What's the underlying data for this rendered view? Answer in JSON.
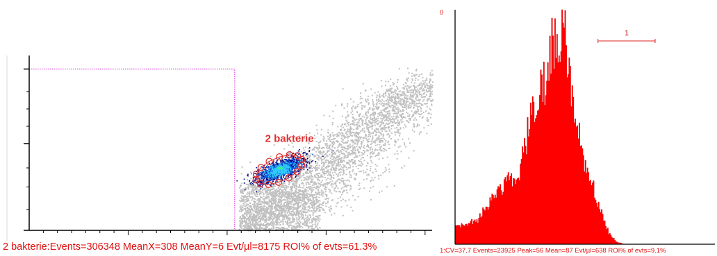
{
  "colors": {
    "gate": "#dd44dd",
    "scatter_bg": "#c0c0c0",
    "density_outer": "#000080",
    "density_mid": "#1060e0",
    "density_core": "#30c8ff",
    "roi": "#e03030",
    "histogram": "#ff0000",
    "text": "#e01010",
    "axis": "#000000"
  },
  "left": {
    "roi_label": "2 bakterie",
    "stats": "2 bakterie:Events=306348  MeanX=308  MeanY=6     Evt/µl=8175   ROI% of evts=61.3%"
  },
  "right": {
    "y_top_label": "0",
    "marker_label": "1",
    "stats": "1:CV=37.7  Events=23925  Peak=56  Mean=87    Evt/µl=638  ROI% of evts=9.1%"
  },
  "chart_data": [
    {
      "type": "scatter",
      "title": "",
      "xlabel": "",
      "ylabel": "",
      "gate_region": {
        "x_range": [
          0,
          0.51
        ],
        "y_range": [
          0,
          0.93
        ]
      },
      "populations": [
        {
          "name": "2 bakterie",
          "center": [
            0.62,
            0.35
          ],
          "roi": true
        }
      ],
      "grid": false
    },
    {
      "type": "bar",
      "title": "",
      "xlabel": "",
      "ylabel": "",
      "bins": 256,
      "peak_bin": 56,
      "mean": 87,
      "cv": 37.7,
      "marker_range": [
        0.55,
        0.77
      ],
      "envelope": [
        [
          0,
          0.08
        ],
        [
          0.08,
          0.1
        ],
        [
          0.13,
          0.18
        ],
        [
          0.2,
          0.27
        ],
        [
          0.25,
          0.33
        ],
        [
          0.28,
          0.5
        ],
        [
          0.3,
          0.6
        ],
        [
          0.34,
          0.7
        ],
        [
          0.37,
          0.86
        ],
        [
          0.39,
          0.9
        ],
        [
          0.41,
          0.95
        ],
        [
          0.42,
          0.94
        ],
        [
          0.43,
          0.78
        ],
        [
          0.45,
          0.65
        ],
        [
          0.47,
          0.5
        ],
        [
          0.5,
          0.35
        ],
        [
          0.53,
          0.26
        ],
        [
          0.56,
          0.14
        ],
        [
          0.59,
          0.05
        ],
        [
          0.62,
          0.01
        ],
        [
          0.65,
          0.0
        ]
      ],
      "grid": false
    }
  ]
}
